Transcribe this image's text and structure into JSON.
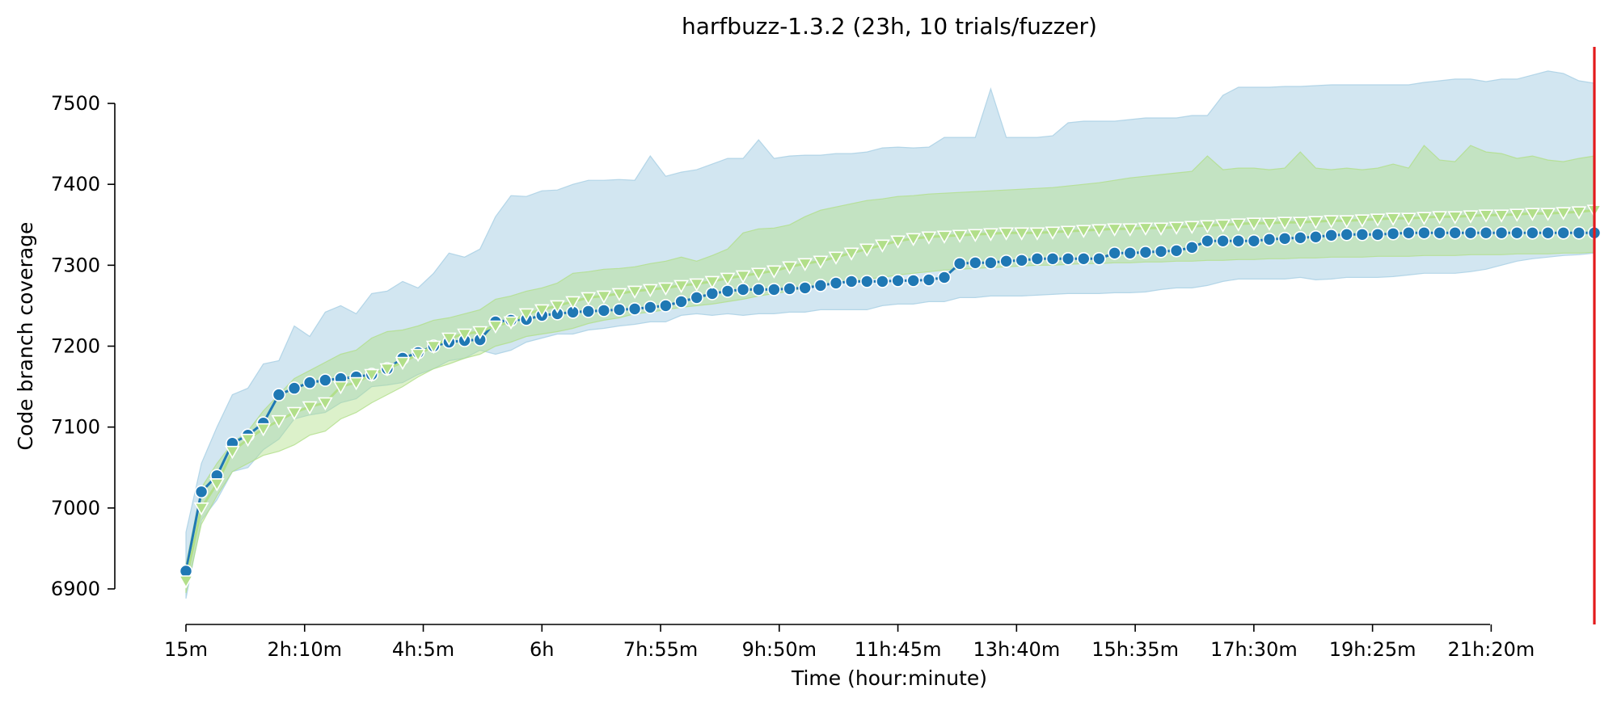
{
  "chart_data": {
    "type": "line",
    "title": "harfbuzz-1.3.2 (23h, 10 trials/fuzzer)",
    "xlabel": "Time (hour:minute)",
    "ylabel": "Code branch coverage",
    "x_unit": "minutes",
    "xlim": [
      15,
      1380
    ],
    "ylim": [
      6900,
      7500
    ],
    "x_ticks": [
      {
        "value": 15,
        "label": "15m"
      },
      {
        "value": 130,
        "label": "2h:10m"
      },
      {
        "value": 245,
        "label": "4h:5m"
      },
      {
        "value": 360,
        "label": "6h"
      },
      {
        "value": 475,
        "label": "7h:55m"
      },
      {
        "value": 590,
        "label": "9h:50m"
      },
      {
        "value": 705,
        "label": "11h:45m"
      },
      {
        "value": 820,
        "label": "13h:40m"
      },
      {
        "value": 935,
        "label": "15h:35m"
      },
      {
        "value": 1050,
        "label": "17h:30m"
      },
      {
        "value": 1165,
        "label": "19h:25m"
      },
      {
        "value": 1280,
        "label": "21h:20m"
      }
    ],
    "y_ticks": [
      6900,
      7000,
      7100,
      7200,
      7300,
      7400,
      7500
    ],
    "vline": {
      "x": 1380,
      "color": "#e31a1c"
    },
    "grid": false,
    "series": [
      {
        "color": "#1f78b4",
        "band_color": "#a6cee3",
        "marker": "circle",
        "points": [
          [
            15,
            6922,
            6888,
            6970
          ],
          [
            30,
            7020,
            6985,
            7055
          ],
          [
            45,
            7040,
            7010,
            7100
          ],
          [
            60,
            7080,
            7045,
            7140
          ],
          [
            75,
            7090,
            7050,
            7148
          ],
          [
            90,
            7105,
            7072,
            7178
          ],
          [
            105,
            7140,
            7085,
            7182
          ],
          [
            120,
            7148,
            7110,
            7225
          ],
          [
            135,
            7155,
            7115,
            7212
          ],
          [
            150,
            7158,
            7118,
            7242
          ],
          [
            165,
            7160,
            7130,
            7250
          ],
          [
            180,
            7162,
            7135,
            7240
          ],
          [
            195,
            7165,
            7150,
            7265
          ],
          [
            210,
            7172,
            7152,
            7268
          ],
          [
            225,
            7185,
            7155,
            7280
          ],
          [
            240,
            7192,
            7165,
            7272
          ],
          [
            255,
            7200,
            7172,
            7290
          ],
          [
            270,
            7205,
            7182,
            7315
          ],
          [
            285,
            7207,
            7185,
            7310
          ],
          [
            300,
            7208,
            7195,
            7320
          ],
          [
            315,
            7230,
            7190,
            7360
          ],
          [
            330,
            7232,
            7195,
            7386
          ],
          [
            345,
            7233,
            7205,
            7385
          ],
          [
            360,
            7238,
            7210,
            7392
          ],
          [
            375,
            7240,
            7215,
            7393
          ],
          [
            390,
            7242,
            7215,
            7400
          ],
          [
            405,
            7243,
            7220,
            7405
          ],
          [
            420,
            7244,
            7222,
            7405
          ],
          [
            435,
            7245,
            7225,
            7406
          ],
          [
            450,
            7246,
            7227,
            7405
          ],
          [
            465,
            7248,
            7230,
            7435
          ],
          [
            480,
            7250,
            7230,
            7410
          ],
          [
            495,
            7255,
            7238,
            7415
          ],
          [
            510,
            7260,
            7240,
            7418
          ],
          [
            525,
            7265,
            7238,
            7425
          ],
          [
            540,
            7268,
            7240,
            7432
          ],
          [
            555,
            7270,
            7238,
            7432
          ],
          [
            570,
            7270,
            7240,
            7455
          ],
          [
            585,
            7270,
            7240,
            7432
          ],
          [
            600,
            7271,
            7242,
            7435
          ],
          [
            615,
            7272,
            7242,
            7436
          ],
          [
            630,
            7275,
            7245,
            7436
          ],
          [
            645,
            7278,
            7245,
            7438
          ],
          [
            660,
            7280,
            7245,
            7438
          ],
          [
            675,
            7280,
            7245,
            7440
          ],
          [
            690,
            7280,
            7250,
            7445
          ],
          [
            705,
            7281,
            7252,
            7446
          ],
          [
            720,
            7281,
            7252,
            7445
          ],
          [
            735,
            7282,
            7255,
            7446
          ],
          [
            750,
            7285,
            7255,
            7458
          ],
          [
            765,
            7302,
            7260,
            7458
          ],
          [
            780,
            7303,
            7260,
            7458
          ],
          [
            795,
            7303,
            7262,
            7518
          ],
          [
            810,
            7305,
            7262,
            7458
          ],
          [
            825,
            7306,
            7262,
            7458
          ],
          [
            840,
            7308,
            7263,
            7458
          ],
          [
            855,
            7308,
            7264,
            7460
          ],
          [
            870,
            7308,
            7265,
            7476
          ],
          [
            885,
            7308,
            7265,
            7478
          ],
          [
            900,
            7308,
            7265,
            7478
          ],
          [
            915,
            7315,
            7266,
            7478
          ],
          [
            930,
            7315,
            7266,
            7480
          ],
          [
            945,
            7316,
            7267,
            7482
          ],
          [
            960,
            7317,
            7270,
            7482
          ],
          [
            975,
            7318,
            7272,
            7482
          ],
          [
            990,
            7322,
            7272,
            7485
          ],
          [
            1005,
            7330,
            7275,
            7485
          ],
          [
            1020,
            7330,
            7280,
            7510
          ],
          [
            1035,
            7330,
            7283,
            7520
          ],
          [
            1050,
            7330,
            7283,
            7520
          ],
          [
            1065,
            7332,
            7283,
            7520
          ],
          [
            1080,
            7333,
            7283,
            7521
          ],
          [
            1095,
            7334,
            7285,
            7521
          ],
          [
            1110,
            7335,
            7282,
            7522
          ],
          [
            1125,
            7337,
            7283,
            7523
          ],
          [
            1140,
            7338,
            7285,
            7523
          ],
          [
            1155,
            7338,
            7285,
            7523
          ],
          [
            1170,
            7338,
            7285,
            7523
          ],
          [
            1185,
            7339,
            7286,
            7523
          ],
          [
            1200,
            7340,
            7288,
            7523
          ],
          [
            1215,
            7340,
            7290,
            7526
          ],
          [
            1230,
            7340,
            7290,
            7528
          ],
          [
            1245,
            7340,
            7290,
            7530
          ],
          [
            1260,
            7340,
            7292,
            7530
          ],
          [
            1275,
            7340,
            7295,
            7527
          ],
          [
            1290,
            7340,
            7300,
            7530
          ],
          [
            1305,
            7340,
            7305,
            7530
          ],
          [
            1320,
            7340,
            7308,
            7535
          ],
          [
            1335,
            7340,
            7310,
            7540
          ],
          [
            1350,
            7340,
            7312,
            7537
          ],
          [
            1365,
            7340,
            7313,
            7528
          ],
          [
            1380,
            7340,
            7315,
            7525
          ]
        ]
      },
      {
        "color": "#b2df8a",
        "band_color": "#b2df8a",
        "marker": "triangle-down",
        "points": [
          [
            15,
            6910,
            6895,
            6930
          ],
          [
            30,
            7000,
            6980,
            7025
          ],
          [
            45,
            7030,
            7015,
            7055
          ],
          [
            60,
            7070,
            7045,
            7080
          ],
          [
            75,
            7085,
            7055,
            7095
          ],
          [
            90,
            7098,
            7065,
            7120
          ],
          [
            105,
            7108,
            7070,
            7140
          ],
          [
            120,
            7118,
            7078,
            7160
          ],
          [
            135,
            7125,
            7090,
            7170
          ],
          [
            150,
            7130,
            7095,
            7180
          ],
          [
            165,
            7150,
            7110,
            7190
          ],
          [
            180,
            7155,
            7118,
            7195
          ],
          [
            195,
            7165,
            7130,
            7210
          ],
          [
            210,
            7172,
            7140,
            7218
          ],
          [
            225,
            7180,
            7150,
            7220
          ],
          [
            240,
            7190,
            7162,
            7225
          ],
          [
            255,
            7200,
            7172,
            7232
          ],
          [
            270,
            7210,
            7178,
            7235
          ],
          [
            285,
            7215,
            7185,
            7240
          ],
          [
            300,
            7218,
            7190,
            7245
          ],
          [
            315,
            7225,
            7200,
            7258
          ],
          [
            330,
            7230,
            7205,
            7262
          ],
          [
            345,
            7240,
            7212,
            7268
          ],
          [
            360,
            7245,
            7215,
            7272
          ],
          [
            375,
            7250,
            7218,
            7278
          ],
          [
            390,
            7255,
            7222,
            7290
          ],
          [
            405,
            7260,
            7228,
            7292
          ],
          [
            420,
            7262,
            7232,
            7295
          ],
          [
            435,
            7265,
            7235,
            7296
          ],
          [
            450,
            7268,
            7240,
            7298
          ],
          [
            465,
            7270,
            7242,
            7302
          ],
          [
            480,
            7272,
            7245,
            7305
          ],
          [
            495,
            7275,
            7248,
            7310
          ],
          [
            510,
            7277,
            7250,
            7305
          ],
          [
            525,
            7280,
            7252,
            7312
          ],
          [
            540,
            7284,
            7255,
            7320
          ],
          [
            555,
            7287,
            7258,
            7340
          ],
          [
            570,
            7290,
            7262,
            7345
          ],
          [
            585,
            7293,
            7265,
            7346
          ],
          [
            600,
            7298,
            7268,
            7350
          ],
          [
            615,
            7302,
            7272,
            7360
          ],
          [
            630,
            7305,
            7274,
            7368
          ],
          [
            645,
            7310,
            7278,
            7372
          ],
          [
            660,
            7315,
            7280,
            7376
          ],
          [
            675,
            7320,
            7283,
            7380
          ],
          [
            690,
            7325,
            7285,
            7382
          ],
          [
            705,
            7330,
            7288,
            7385
          ],
          [
            720,
            7333,
            7290,
            7386
          ],
          [
            735,
            7335,
            7292,
            7388
          ],
          [
            750,
            7336,
            7294,
            7389
          ],
          [
            765,
            7337,
            7295,
            7390
          ],
          [
            780,
            7338,
            7296,
            7391
          ],
          [
            795,
            7339,
            7297,
            7392
          ],
          [
            810,
            7340,
            7298,
            7393
          ],
          [
            825,
            7340,
            7299,
            7394
          ],
          [
            840,
            7340,
            7300,
            7395
          ],
          [
            855,
            7341,
            7300,
            7396
          ],
          [
            870,
            7342,
            7301,
            7398
          ],
          [
            885,
            7343,
            7302,
            7400
          ],
          [
            900,
            7344,
            7302,
            7402
          ],
          [
            915,
            7345,
            7303,
            7405
          ],
          [
            930,
            7345,
            7303,
            7408
          ],
          [
            945,
            7346,
            7304,
            7410
          ],
          [
            960,
            7346,
            7304,
            7412
          ],
          [
            975,
            7347,
            7305,
            7414
          ],
          [
            990,
            7348,
            7305,
            7416
          ],
          [
            1005,
            7349,
            7306,
            7435
          ],
          [
            1020,
            7350,
            7306,
            7418
          ],
          [
            1035,
            7351,
            7307,
            7420
          ],
          [
            1050,
            7352,
            7307,
            7420
          ],
          [
            1065,
            7352,
            7308,
            7418
          ],
          [
            1080,
            7353,
            7308,
            7420
          ],
          [
            1095,
            7353,
            7309,
            7440
          ],
          [
            1110,
            7354,
            7309,
            7420
          ],
          [
            1125,
            7355,
            7310,
            7418
          ],
          [
            1140,
            7355,
            7310,
            7420
          ],
          [
            1155,
            7356,
            7310,
            7418
          ],
          [
            1170,
            7357,
            7311,
            7420
          ],
          [
            1185,
            7358,
            7311,
            7425
          ],
          [
            1200,
            7358,
            7311,
            7420
          ],
          [
            1215,
            7359,
            7312,
            7448
          ],
          [
            1230,
            7360,
            7312,
            7430
          ],
          [
            1245,
            7360,
            7312,
            7428
          ],
          [
            1260,
            7361,
            7313,
            7448
          ],
          [
            1275,
            7362,
            7313,
            7440
          ],
          [
            1290,
            7362,
            7313,
            7438
          ],
          [
            1305,
            7363,
            7314,
            7432
          ],
          [
            1320,
            7364,
            7314,
            7435
          ],
          [
            1335,
            7364,
            7314,
            7430
          ],
          [
            1350,
            7365,
            7315,
            7428
          ],
          [
            1365,
            7366,
            7315,
            7432
          ],
          [
            1380,
            7368,
            7316,
            7435
          ]
        ]
      }
    ]
  }
}
